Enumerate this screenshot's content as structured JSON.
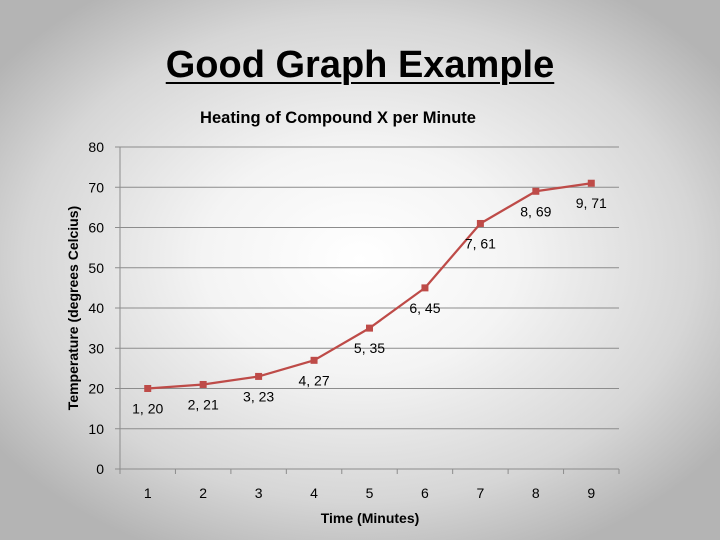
{
  "slide": {
    "title": "Good Graph Example"
  },
  "chart_data": {
    "type": "line",
    "title": "Heating of Compound X per Minute",
    "xlabel": "Time (Minutes)",
    "ylabel": "Temperature (degrees Celcius)",
    "x": [
      1,
      2,
      3,
      4,
      5,
      6,
      7,
      8,
      9
    ],
    "y": [
      20,
      21,
      23,
      27,
      35,
      45,
      61,
      69,
      71
    ],
    "data_labels": [
      "1, 20",
      "2, 21",
      "3, 23",
      "4, 27",
      "5, 35",
      "6, 45",
      "7, 61",
      "8, 69",
      "9, 71"
    ],
    "xlim": [
      0.5,
      9.5
    ],
    "ylim": [
      0,
      80
    ],
    "yticks": [
      0,
      10,
      20,
      30,
      40,
      50,
      60,
      70,
      80
    ],
    "xticks": [
      1,
      2,
      3,
      4,
      5,
      6,
      7,
      8,
      9
    ],
    "grid": "horizontal",
    "legend": "none",
    "series_color": "#BE4B48",
    "marker": "square"
  }
}
